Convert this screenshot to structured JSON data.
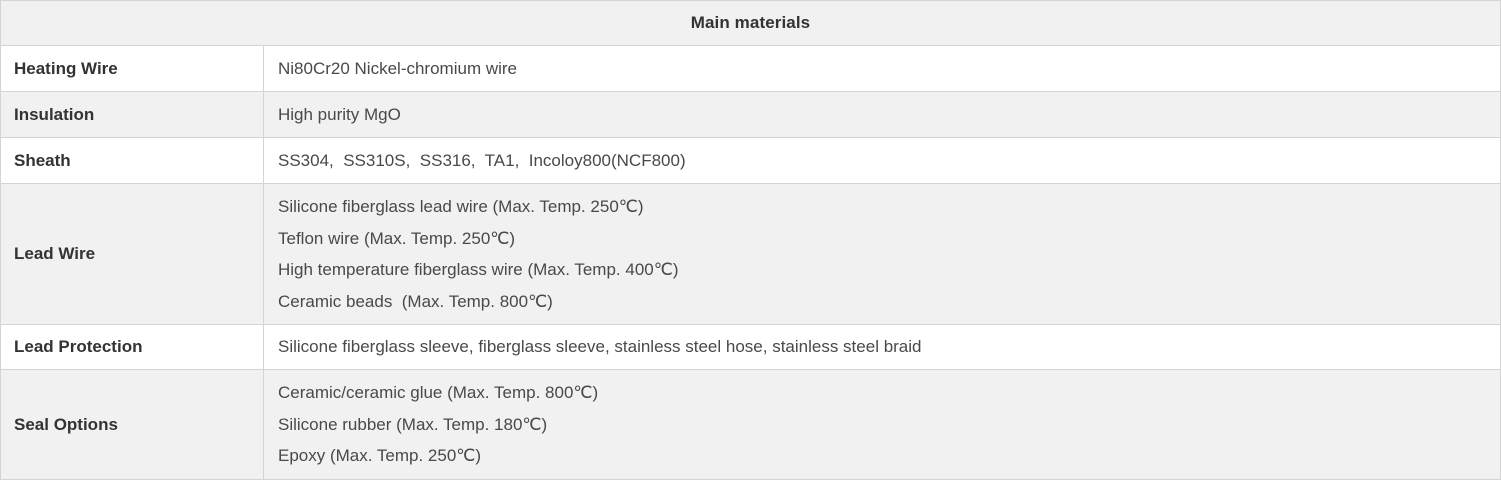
{
  "table": {
    "title": "Main materials",
    "rows": [
      {
        "label": "Heating Wire",
        "lines": [
          "Ni80Cr20 Nickel-chromium wire"
        ]
      },
      {
        "label": "Insulation",
        "lines": [
          "High purity MgO"
        ]
      },
      {
        "label": "Sheath",
        "lines": [
          "SS304,  SS310S,  SS316,  TA1,  Incoloy800(NCF800)"
        ]
      },
      {
        "label": "Lead Wire",
        "lines": [
          "Silicone fiberglass lead wire (Max. Temp. 250℃)",
          "Teflon wire (Max. Temp. 250℃)",
          "High temperature fiberglass wire (Max. Temp. 400℃)",
          "Ceramic beads  (Max. Temp. 800℃)"
        ]
      },
      {
        "label": "Lead Protection",
        "lines": [
          "Silicone fiberglass sleeve, fiberglass sleeve, stainless steel hose, stainless steel braid"
        ]
      },
      {
        "label": "Seal Options",
        "lines": [
          "Ceramic/ceramic glue (Max. Temp. 800℃)",
          "Silicone rubber (Max. Temp. 180℃)",
          "Epoxy (Max. Temp. 250℃)"
        ]
      }
    ]
  },
  "colors": {
    "stripe_bg": "#f1f1f1",
    "border": "#d4d4d4",
    "label_text": "#333333",
    "value_text": "#494949"
  }
}
